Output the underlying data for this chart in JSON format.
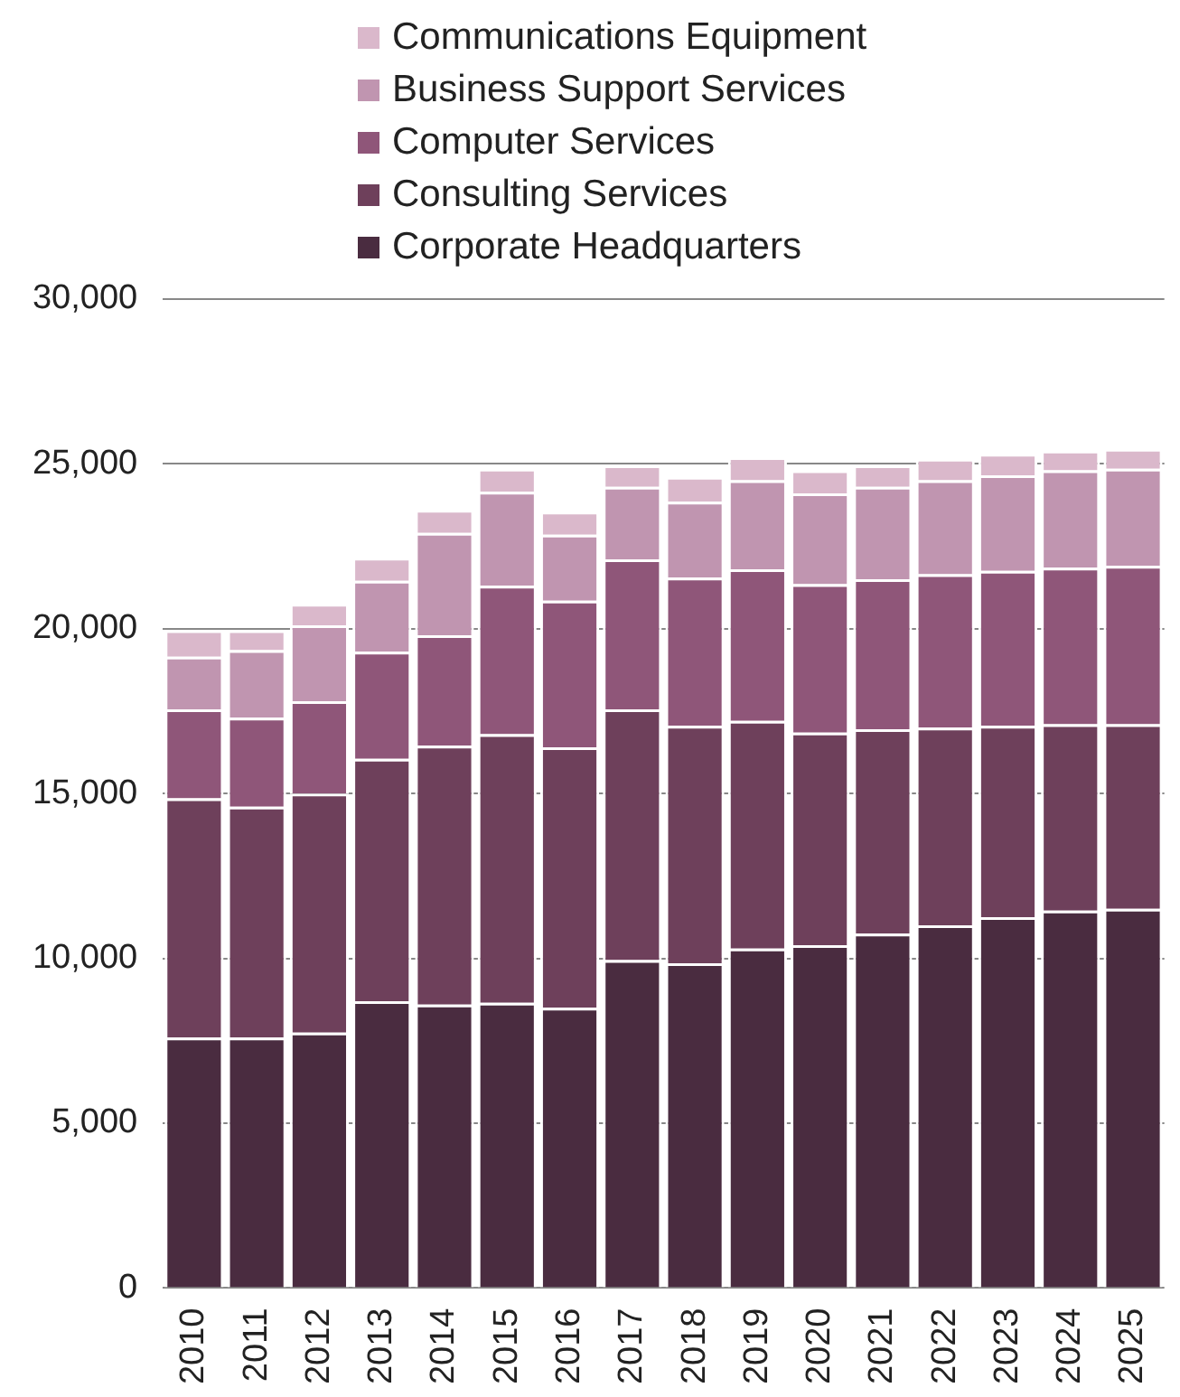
{
  "chart_data": {
    "type": "bar",
    "stacked": true,
    "categories": [
      "2010",
      "2011",
      "2012",
      "2013",
      "2014",
      "2015",
      "2016",
      "2017",
      "2018",
      "2019",
      "2020",
      "2021",
      "2022",
      "2023",
      "2024",
      "2025"
    ],
    "series": [
      {
        "name": "Corporate Headquarters",
        "color": "#4a2c40",
        "values": [
          7600,
          7600,
          7750,
          8700,
          8600,
          8650,
          8500,
          9950,
          9850,
          10300,
          10400,
          10750,
          11000,
          11250,
          11450,
          11500
        ]
      },
      {
        "name": "Consulting Services",
        "color": "#6e405b",
        "values": [
          7250,
          7000,
          7250,
          7350,
          7850,
          8150,
          7900,
          7600,
          7200,
          6900,
          6450,
          6200,
          6000,
          5800,
          5650,
          5600
        ]
      },
      {
        "name": "Computer Services",
        "color": "#8f5679",
        "values": [
          2700,
          2700,
          2800,
          3250,
          3350,
          4500,
          4450,
          4550,
          4500,
          4600,
          4500,
          4550,
          4650,
          4700,
          4750,
          4800
        ]
      },
      {
        "name": "Business Support Services",
        "color": "#c095b0",
        "values": [
          1600,
          2050,
          2300,
          2150,
          3100,
          2850,
          2000,
          2200,
          2300,
          2700,
          2750,
          2800,
          2850,
          2900,
          2950,
          2950
        ]
      },
      {
        "name": "Communications Equipment",
        "color": "#dab8cb",
        "values": [
          800,
          600,
          650,
          700,
          700,
          700,
          700,
          650,
          750,
          700,
          700,
          650,
          650,
          650,
          600,
          600
        ]
      }
    ],
    "ylim": [
      0,
      30000
    ],
    "yticks": [
      0,
      {
        "value": 5000,
        "label": "5,000"
      },
      {
        "value": 10000,
        "label": "10,000"
      },
      {
        "value": 15000,
        "label": "15,000"
      },
      {
        "value": 20000,
        "label": "20,000"
      },
      {
        "value": 25000,
        "label": "25,000"
      },
      {
        "value": 30000,
        "label": "30,000"
      }
    ],
    "grid": "y",
    "legend": "top"
  }
}
